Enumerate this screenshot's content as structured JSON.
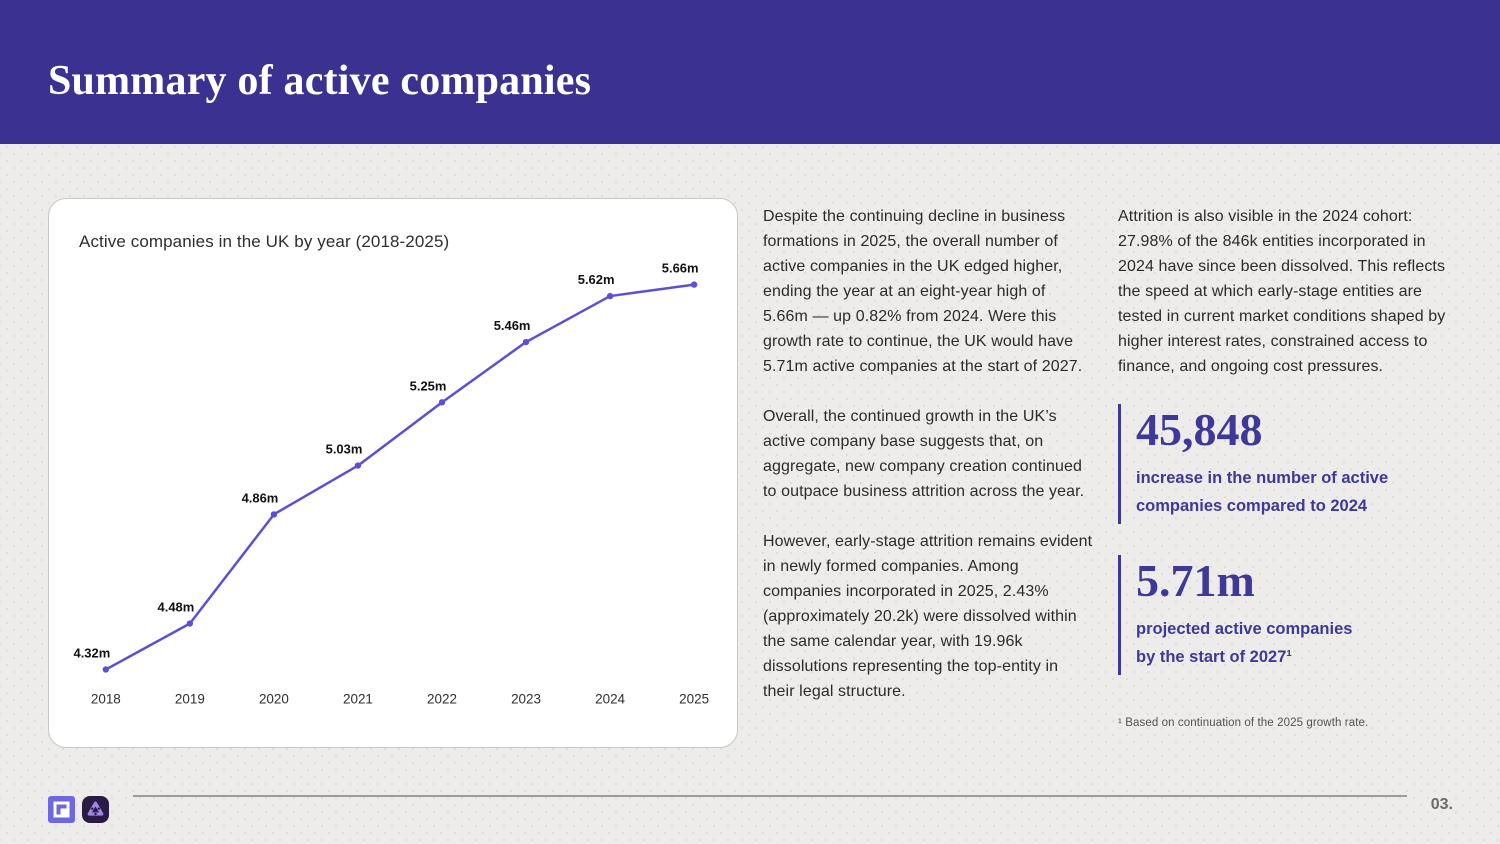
{
  "header": {
    "title": "Summary of active companies"
  },
  "chart_data": {
    "type": "line",
    "title": "Active companies in the UK by year (2018-2025)",
    "categories": [
      "2018",
      "2019",
      "2020",
      "2021",
      "2022",
      "2023",
      "2024",
      "2025"
    ],
    "values": [
      4.32,
      4.48,
      4.86,
      5.03,
      5.25,
      5.46,
      5.62,
      5.66
    ],
    "point_labels": [
      "4.32m",
      "4.48m",
      "4.86m",
      "5.03m",
      "5.25m",
      "5.46m",
      "5.62m",
      "5.66m"
    ],
    "unit": "millions of companies",
    "xlabel": "",
    "ylabel": "",
    "ylim": [
      4.32,
      5.66
    ],
    "grid": false,
    "legend": false,
    "line_color": "#5a50d6"
  },
  "middle_column": {
    "paragraphs": [
      "Despite the continuing decline in business formations in 2025, the overall number of active companies in the UK edged higher, ending the year at an eight-year high of 5.66m — up 0.82% from 2024. Were this growth rate to continue, the UK would have 5.71m active companies at the start of 2027.",
      "Overall, the continued growth in the UK’s active company base suggests that, on aggregate, new company creation continued to outpace business attrition across the year.",
      "However, early-stage attrition remains evident in newly formed companies. Among companies incorporated in 2025, 2.43% (approximately 20.2k) were dissolved within the same calendar year, with 19.96k dissolutions representing the top-entity in their legal structure."
    ]
  },
  "right_column": {
    "paragraph": "Attrition is also visible in the 2024 cohort: 27.98% of the 846k entities incorporated in 2024 have since been dissolved. This reflects the speed at which early-stage entities are tested in current market conditions shaped by higher interest rates, constrained access to finance, and ongoing cost pressures.",
    "stats": [
      {
        "value": "45,848",
        "label": "increase in the number of active\ncompanies compared to 2024"
      },
      {
        "value": "5.71m",
        "label": "projected active companies\nby the start of 2027¹"
      }
    ],
    "footnote": "¹ Based on continuation of the 2025 growth rate."
  },
  "footer": {
    "page_number": "03.",
    "logos": [
      "window-mark-logo",
      "trefoil-knot-logo"
    ]
  },
  "colors": {
    "header_bg": "#3a3190",
    "accent_indigo": "#3e3897",
    "chart_line": "#5a50d6",
    "page_bg": "#edecea",
    "dot_color": "#e0deda",
    "body_text": "#2b2b2b",
    "divider_grey": "#9b9b9b",
    "logo1_bg": "#6f66e2",
    "logo2_bg": "#2b1b42",
    "logo2_glyph": "#a184e8"
  }
}
